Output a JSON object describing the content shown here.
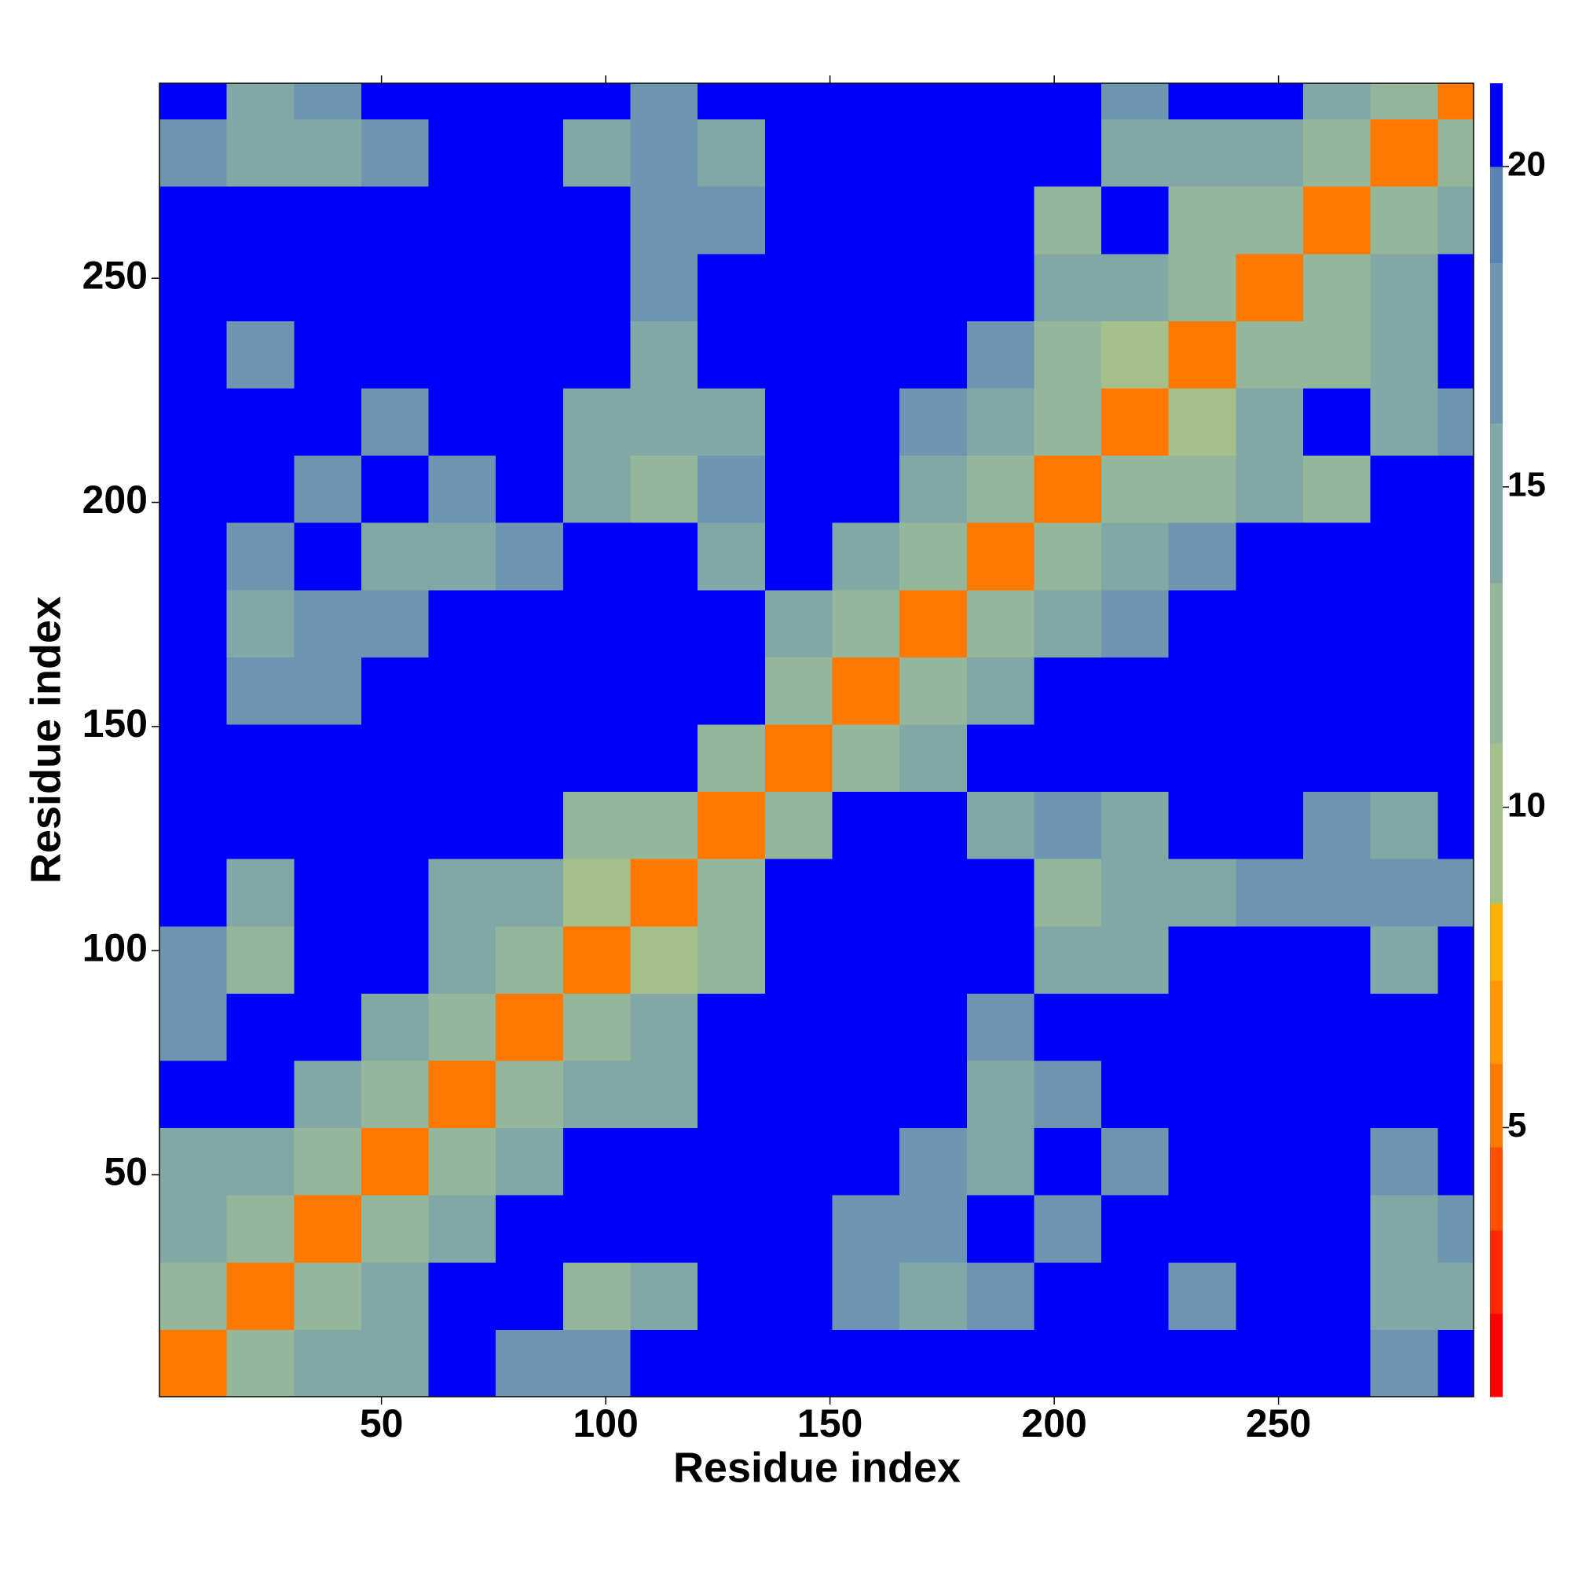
{
  "chart_data": {
    "type": "heatmap",
    "xlabel": "Residue index",
    "ylabel": "Residue index",
    "xlim": [
      0.5,
      293.5
    ],
    "ylim": [
      0.5,
      293.5
    ],
    "xticks": [
      50,
      100,
      150,
      200,
      250
    ],
    "yticks": [
      50,
      100,
      150,
      200,
      250
    ],
    "xbins": [
      0.5,
      15.5,
      30.5,
      45.5,
      60.5,
      75.5,
      90.5,
      105.5,
      120.5,
      135.5,
      150.5,
      165.5,
      180.5,
      195.5,
      210.5,
      225.5,
      240.5,
      255.5,
      270.5,
      285.5,
      293.5
    ],
    "ybins": [
      0.5,
      15.5,
      30.5,
      45.5,
      60.5,
      75.5,
      90.5,
      105.5,
      120.5,
      135.5,
      150.5,
      165.5,
      180.5,
      195.5,
      210.5,
      225.5,
      240.5,
      255.5,
      270.5,
      285.5,
      293.5
    ],
    "values": [
      [
        5,
        13,
        15,
        16,
        21,
        17,
        17,
        21,
        21,
        21,
        21,
        21,
        21,
        21,
        21,
        21,
        21,
        21,
        18,
        21
      ],
      [
        13,
        5,
        13,
        15,
        21,
        21,
        13,
        16,
        21,
        21,
        18,
        16,
        17,
        21,
        21,
        18,
        21,
        21,
        15,
        16
      ],
      [
        15,
        13,
        5,
        13,
        16,
        21,
        21,
        21,
        21,
        21,
        17,
        17,
        21,
        18,
        21,
        21,
        21,
        21,
        15,
        17
      ],
      [
        16,
        15,
        13,
        5,
        13,
        16,
        21,
        21,
        21,
        21,
        21,
        17,
        14,
        21,
        18,
        21,
        21,
        21,
        17,
        21
      ],
      [
        21,
        21,
        16,
        13,
        5,
        13,
        15,
        16,
        21,
        21,
        21,
        21,
        14,
        18,
        21,
        21,
        21,
        21,
        21,
        21
      ],
      [
        17,
        21,
        21,
        16,
        13,
        5,
        13,
        14,
        21,
        21,
        21,
        21,
        17,
        21,
        21,
        21,
        21,
        21,
        21,
        21
      ],
      [
        17,
        13,
        21,
        21,
        15,
        13,
        5,
        11,
        13,
        21,
        21,
        21,
        21,
        16,
        15,
        21,
        21,
        21,
        16,
        21
      ],
      [
        21,
        16,
        21,
        21,
        16,
        14,
        11,
        5,
        13,
        21,
        21,
        21,
        21,
        12,
        16,
        16,
        18,
        18,
        18,
        18
      ],
      [
        21,
        21,
        21,
        21,
        21,
        21,
        13,
        13,
        5,
        13,
        21,
        21,
        15,
        17,
        15,
        21,
        21,
        17,
        16,
        21
      ],
      [
        21,
        21,
        21,
        21,
        21,
        21,
        21,
        21,
        13,
        5,
        13,
        16,
        21,
        21,
        21,
        21,
        21,
        21,
        21,
        21
      ],
      [
        21,
        18,
        17,
        21,
        21,
        21,
        21,
        21,
        21,
        13,
        5,
        13,
        16,
        21,
        21,
        21,
        21,
        21,
        21,
        21
      ],
      [
        21,
        16,
        17,
        17,
        21,
        21,
        21,
        21,
        21,
        16,
        13,
        5,
        13,
        16,
        18,
        21,
        21,
        21,
        21,
        21
      ],
      [
        21,
        17,
        21,
        14,
        14,
        17,
        21,
        21,
        15,
        21,
        16,
        13,
        5,
        13,
        15,
        17,
        21,
        21,
        21,
        21
      ],
      [
        21,
        21,
        18,
        21,
        18,
        21,
        16,
        12,
        17,
        21,
        21,
        16,
        13,
        5,
        13,
        13,
        15,
        12,
        21,
        21
      ],
      [
        21,
        21,
        21,
        18,
        21,
        21,
        15,
        16,
        15,
        21,
        21,
        18,
        15,
        13,
        5,
        11,
        14,
        21,
        16,
        18
      ],
      [
        21,
        18,
        21,
        21,
        21,
        21,
        21,
        16,
        21,
        21,
        21,
        21,
        17,
        13,
        11,
        5,
        13,
        12,
        15,
        21
      ],
      [
        21,
        21,
        21,
        21,
        21,
        21,
        21,
        18,
        21,
        21,
        21,
        21,
        21,
        15,
        14,
        13,
        5,
        13,
        14,
        21
      ],
      [
        21,
        21,
        21,
        21,
        21,
        21,
        21,
        18,
        17,
        21,
        21,
        21,
        21,
        12,
        21,
        12,
        13,
        5,
        13,
        15
      ],
      [
        18,
        15,
        15,
        17,
        21,
        21,
        16,
        18,
        16,
        21,
        21,
        21,
        21,
        21,
        16,
        15,
        14,
        13,
        5,
        13
      ],
      [
        21,
        16,
        17,
        21,
        21,
        21,
        21,
        18,
        21,
        21,
        21,
        21,
        21,
        21,
        18,
        21,
        21,
        15,
        13,
        5
      ]
    ],
    "colorbar": {
      "lim": [
        0.8,
        21.3
      ],
      "ticks": [
        5,
        10,
        15,
        20
      ],
      "levels": [
        0.8,
        2.1,
        3.4,
        4.7,
        6.0,
        7.3,
        8.5,
        11.0,
        13.5,
        16.0,
        18.5,
        20.0,
        21.3
      ],
      "colors": [
        "#ff0000",
        "#ff2800",
        "#ff5000",
        "#ff7800",
        "#ff9800",
        "#ffb000",
        "#a4bf8a",
        "#94b69a",
        "#82a8a6",
        "#6f96b0",
        "#5b84b4",
        "#0000ff"
      ]
    }
  }
}
